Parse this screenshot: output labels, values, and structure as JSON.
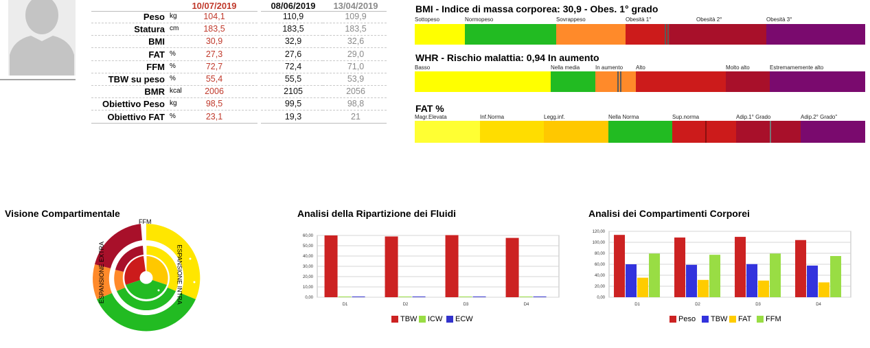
{
  "measures": {
    "dates": [
      "10/07/2019",
      "08/06/2019",
      "13/04/2019"
    ],
    "rows": [
      {
        "label": "Peso",
        "unit": "kg",
        "values": [
          "104,1",
          "110,9",
          "109,9"
        ]
      },
      {
        "label": "Statura",
        "unit": "cm",
        "values": [
          "183,5",
          "183,5",
          "183,5"
        ]
      },
      {
        "label": "BMI",
        "unit": "",
        "values": [
          "30,9",
          "32,9",
          "32,6"
        ]
      },
      {
        "label": "FAT",
        "unit": "%",
        "values": [
          "27,3",
          "27,6",
          "29,0"
        ]
      },
      {
        "label": "FFM",
        "unit": "%",
        "values": [
          "72,7",
          "72,4",
          "71,0"
        ]
      },
      {
        "label": "TBW su peso",
        "unit": "%",
        "values": [
          "55,4",
          "55,5",
          "53,9"
        ]
      },
      {
        "label": "BMR",
        "unit": "kcal",
        "values": [
          "2006",
          "2105",
          "2056"
        ]
      },
      {
        "label": "Obiettivo Peso",
        "unit": "kg",
        "values": [
          "98,5",
          "99,5",
          "98,8"
        ]
      },
      {
        "label": "Obiettivo FAT",
        "unit": "%",
        "values": [
          "23,1",
          "19,3",
          "21"
        ]
      }
    ]
  },
  "indices": [
    {
      "title": "BMI - Indice di massa corporea: 30,9 - Obes. 1° grado",
      "categories": [
        "Sottopeso",
        "Normopeso",
        "Sovrappeso",
        "Obesità 1°",
        "Obesità 2°",
        "Obesità 3°"
      ],
      "colors": [
        "#ffff00",
        "#22bb22",
        "#ff8a2a",
        "#cc1b1b",
        "#a8102a",
        "#7a0a6e"
      ]
    },
    {
      "title": "WHR - Rischio malattia: 0,94 In aumento",
      "categories": [
        "Basso",
        "Nella media",
        "In aumento",
        "Alto",
        "Molto alto",
        "Estremamemente alto"
      ],
      "colors": [
        "#ffff00",
        "#22bb22",
        "#ff8a2a",
        "#cc1b1b",
        "#a8102a",
        "#7a0a6e"
      ]
    },
    {
      "title": "FAT %",
      "categories": [
        "Magr.Elevata",
        "Inf.Norma",
        "Legg.inf.",
        "Nella Norma",
        "Sup.norma",
        "Adip.1° Grado",
        "Adip.2° Grado\""
      ],
      "colors": [
        "#ffff33",
        "#ffdd00",
        "#ffc800",
        "#22bb22",
        "#cc1b1b",
        "#a8102a",
        "#7a0a6e"
      ]
    }
  ],
  "compartment_view": {
    "title": "Visione Compartimentale",
    "labels": [
      "FFM",
      "ESPANSIONE EXTRA",
      "ESPANSIONE INTRA"
    ]
  },
  "chart_data": [
    {
      "type": "bar",
      "title": "Analisi della Ripartizione dei Fluidi",
      "categories": [
        "D1",
        "D2",
        "D3",
        "D4"
      ],
      "ylim": [
        0,
        60
      ],
      "yticks": [
        "0,00",
        "10,00",
        "20,00",
        "30,00",
        "40,00",
        "50,00",
        "60,00"
      ],
      "series": [
        {
          "name": "TBW",
          "color": "#cc2222",
          "values": [
            60.0,
            59.0,
            60.3,
            57.6
          ]
        },
        {
          "name": "ICW",
          "color": "#99dd44",
          "values": [
            0,
            0,
            0,
            0
          ]
        },
        {
          "name": "ECW",
          "color": "#3333cc",
          "values": [
            0,
            0,
            0,
            0
          ]
        }
      ],
      "grid": true,
      "legend": "bottom"
    },
    {
      "type": "bar",
      "title": "Analisi dei Compartimenti Corporei",
      "categories": [
        "D1",
        "D2",
        "D3",
        "D4"
      ],
      "ylim": [
        0,
        120
      ],
      "yticks": [
        "0,00",
        "20,00",
        "40,00",
        "60,00",
        "80,00",
        "100,00",
        "120,00"
      ],
      "series": [
        {
          "name": "Peso",
          "color": "#cc2222",
          "values": [
            113.5,
            108.7,
            109.9,
            104.1
          ]
        },
        {
          "name": "TBW",
          "color": "#3333dd",
          "values": [
            60.0,
            59.0,
            60.3,
            57.6
          ]
        },
        {
          "name": "FAT",
          "color": "#ffcc00",
          "values": [
            35.5,
            31.5,
            30.3,
            27.0
          ]
        },
        {
          "name": "FFM",
          "color": "#99dd44",
          "values": [
            79.5,
            77.3,
            79.5,
            75.0
          ]
        }
      ],
      "grid": true,
      "legend": "bottom"
    }
  ]
}
